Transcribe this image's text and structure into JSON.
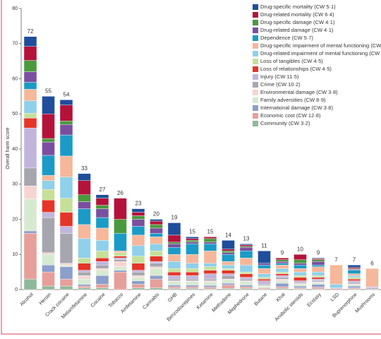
{
  "chart_data": {
    "type": "stacked_bar",
    "ylabel": "Overall harm score",
    "categories": [
      "Alcohol",
      "Heroin",
      "Crack cocaine",
      "Metamfetamine",
      "Cocaine",
      "Tobacco",
      "Amfetamine",
      "Cannabis",
      "GHB",
      "Benzodiazepines",
      "Ketamine",
      "Methadone",
      "Mephedrone",
      "Butane",
      "Khat",
      "Anabolic steroids",
      "Ecstasy",
      "LSD",
      "Buprenorphine",
      "Mushrooms"
    ],
    "total_labels": [
      72,
      55,
      54,
      33,
      27,
      26,
      23,
      20,
      19,
      15,
      15,
      14,
      13,
      11,
      9,
      10,
      9,
      7,
      7,
      6
    ],
    "ylim": [
      0,
      80
    ],
    "yticks": [
      0,
      10,
      20,
      30,
      40,
      50,
      60,
      70,
      80
    ],
    "legend": "top-right",
    "series": [
      {
        "name": "Drug-specific mortality (CW 5·1)",
        "color": "#1f4e9c",
        "values": [
          2.8,
          5,
          1.5,
          2,
          1,
          0,
          1,
          0.5,
          3.5,
          0.5,
          0,
          2.5,
          0.3,
          3.5,
          0,
          0,
          0.2,
          0,
          0.7,
          0
        ]
      },
      {
        "name": "Drug-related mortality (CW 6·4)",
        "color": "#b5123a",
        "values": [
          4,
          7,
          4.5,
          4,
          2,
          6,
          1,
          1,
          2,
          0.5,
          0.5,
          0.5,
          0.4,
          0,
          0.5,
          1.5,
          0.3,
          0,
          0.3,
          0
        ]
      },
      {
        "name": "Drug-specific damage (CW 4·1)",
        "color": "#4a9a3c",
        "values": [
          3.2,
          1,
          1,
          2,
          1,
          4,
          1,
          1,
          0.5,
          0.5,
          1,
          0.5,
          0.3,
          0,
          0.5,
          1,
          0.5,
          0,
          0.2,
          0
        ]
      },
      {
        "name": "Drug-related damage (CW 4·1)",
        "color": "#7b4fa0",
        "values": [
          3,
          3.8,
          3,
          2,
          2.5,
          0,
          2,
          1.5,
          1,
          0.5,
          0.5,
          0.5,
          1,
          0.5,
          0.5,
          0.5,
          1,
          0,
          0.3,
          0
        ]
      },
      {
        "name": "Dependence (CW 5·7)",
        "color": "#1a9bc7",
        "values": [
          2,
          5.7,
          6,
          4.5,
          3,
          5,
          2.5,
          1,
          2,
          3,
          2,
          2,
          2,
          1,
          0.5,
          1,
          0.5,
          0,
          1,
          0
        ]
      },
      {
        "name": "Drug-specific impairment of mental functioning (CW 5·7)",
        "color": "#f6b79a",
        "values": [
          3.3,
          1.5,
          6,
          4,
          3.5,
          0.5,
          3,
          2,
          2,
          2.5,
          3.5,
          1,
          2,
          1.5,
          1,
          1,
          1.5,
          5.5,
          0.5,
          5.2
        ]
      },
      {
        "name": "Drug-related impairment of mental functioning (CW 5·7)",
        "color": "#8fd0ea",
        "values": [
          3.5,
          2.5,
          6,
          5.5,
          3,
          0,
          3,
          2,
          2,
          1.5,
          1,
          1,
          2,
          1,
          1,
          1,
          1,
          1,
          0.5,
          0
        ]
      },
      {
        "name": "Loss of tangibles (CW 4·5)",
        "color": "#c6e09a",
        "values": [
          1.4,
          3,
          4,
          1.5,
          2,
          1,
          2,
          1.5,
          1,
          1,
          1,
          0.5,
          0.5,
          0.5,
          0.5,
          0.5,
          0.5,
          0,
          0.5,
          0
        ]
      },
      {
        "name": "Loss of relationships (CW 4·5)",
        "color": "#e53528",
        "values": [
          2.8,
          3.5,
          4,
          2,
          1,
          0.5,
          2,
          1.5,
          1,
          1,
          1,
          1,
          1,
          0.5,
          0.5,
          1,
          0.5,
          0,
          0.5,
          0
        ]
      },
      {
        "name": "Injury (CW 11·5)",
        "color": "#c2b5dc",
        "values": [
          11.4,
          1.5,
          2,
          0.5,
          1,
          0.5,
          0.5,
          0.5,
          1,
          1,
          1.5,
          0.5,
          0.5,
          1,
          0.5,
          0.5,
          0.5,
          0,
          0.5,
          0.3
        ]
      },
      {
        "name": "Crime (CW 10·2)",
        "color": "#a6a6b0",
        "values": [
          5.1,
          10,
          8.5,
          1,
          1,
          0.5,
          1,
          1,
          0.5,
          0.5,
          0.5,
          1,
          0.5,
          0.3,
          0.5,
          0.3,
          0.3,
          0,
          0.4,
          0
        ]
      },
      {
        "name": "Environmental damage (CW 3·8)",
        "color": "#f6d5d0",
        "values": [
          3.7,
          0.5,
          0.5,
          1,
          0.5,
          1.5,
          0.5,
          0.5,
          0.2,
          0.2,
          0.3,
          0.2,
          0.2,
          0.2,
          0.5,
          0.2,
          0.2,
          0,
          0.1,
          0
        ]
      },
      {
        "name": "Family adversities (CW 8·9)",
        "color": "#d6ead0",
        "values": [
          9.1,
          3,
          0.5,
          1.5,
          1.5,
          1,
          1,
          2,
          1,
          1,
          1,
          1,
          1,
          0.5,
          0.7,
          0.5,
          0.5,
          0,
          0.5,
          0
        ]
      },
      {
        "name": "International damage (CW 3·8)",
        "color": "#8b9fcc",
        "values": [
          0.7,
          2,
          3.5,
          0.5,
          2.5,
          0.5,
          1,
          1,
          0.5,
          0.5,
          0.5,
          0.5,
          0.5,
          0,
          1,
          0.5,
          0.8,
          0.2,
          0.5,
          0.3
        ]
      },
      {
        "name": "Economic cost (CW 12·8)",
        "color": "#e79f9a",
        "values": [
          13,
          4,
          2,
          0.5,
          1,
          5,
          1,
          2.5,
          0.5,
          0.5,
          0.5,
          1,
          0.5,
          0.3,
          0.5,
          0.3,
          0.5,
          0.3,
          0.3,
          0.2
        ]
      },
      {
        "name": "Community (CW 3·2)",
        "color": "#8fb89a",
        "values": [
          3,
          1,
          1,
          0.5,
          0.5,
          0,
          0.5,
          0.5,
          0.3,
          0.3,
          0.2,
          0.3,
          0.3,
          0.2,
          0.3,
          0.2,
          0.2,
          0,
          0.2,
          0
        ]
      }
    ]
  }
}
